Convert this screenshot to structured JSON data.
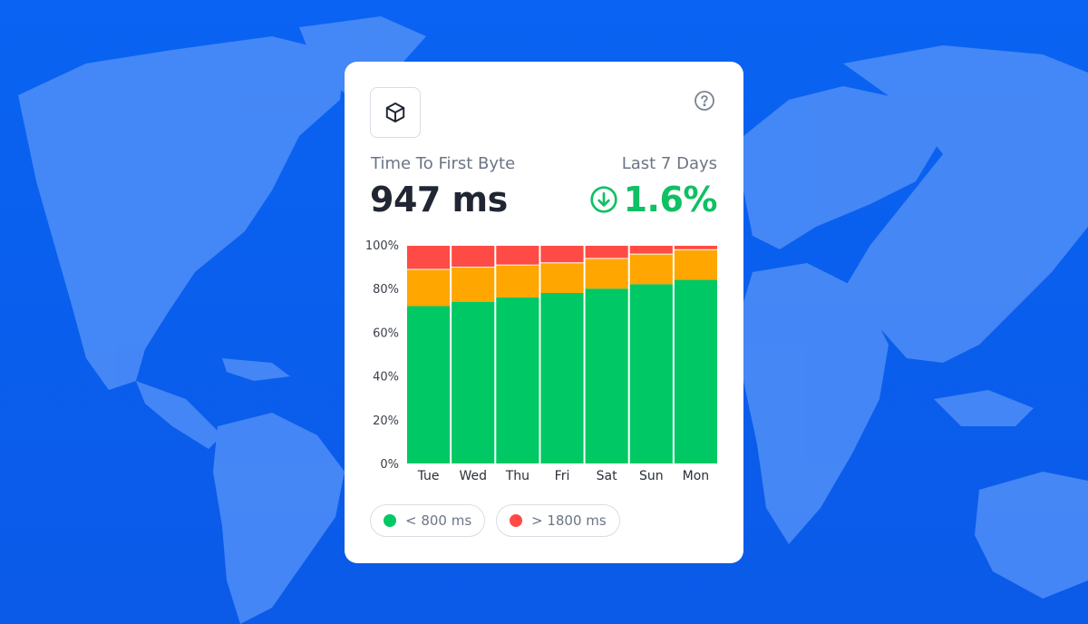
{
  "card": {
    "metric_title": "Time To First Byte",
    "metric_value": "947 ms",
    "period": "Last 7 Days",
    "delta": "1.6%",
    "delta_direction": "down",
    "icons": {
      "logo": "cube-icon",
      "help": "question-circle-icon",
      "delta": "arrow-down-circle-icon"
    }
  },
  "colors": {
    "good": "#00c864",
    "medium": "#ffa600",
    "poor": "#ff4b45",
    "delta": "#10c064"
  },
  "legend": [
    {
      "label": "< 800 ms",
      "color": "#00c864"
    },
    {
      "label": "> 1800 ms",
      "color": "#ff4b45"
    }
  ],
  "chart_data": {
    "type": "bar",
    "stacked": true,
    "categories": [
      "Tue",
      "Wed",
      "Thu",
      "Fri",
      "Sat",
      "Sun",
      "Mon"
    ],
    "series": [
      {
        "name": "< 800 ms",
        "color": "#00c864",
        "values": [
          72,
          74,
          76,
          78,
          80,
          82,
          84
        ]
      },
      {
        "color": "#ffa600",
        "values": [
          17,
          16,
          15,
          14,
          14,
          14,
          14
        ]
      },
      {
        "name": "> 1800 ms",
        "color": "#ff4b45",
        "values": [
          11,
          10,
          9,
          8,
          6,
          4,
          2
        ]
      }
    ],
    "yticks": [
      "0%",
      "20%",
      "40%",
      "60%",
      "80%",
      "100%"
    ],
    "ylim": [
      0,
      100
    ],
    "grid": false,
    "legend_position": "bottom"
  }
}
